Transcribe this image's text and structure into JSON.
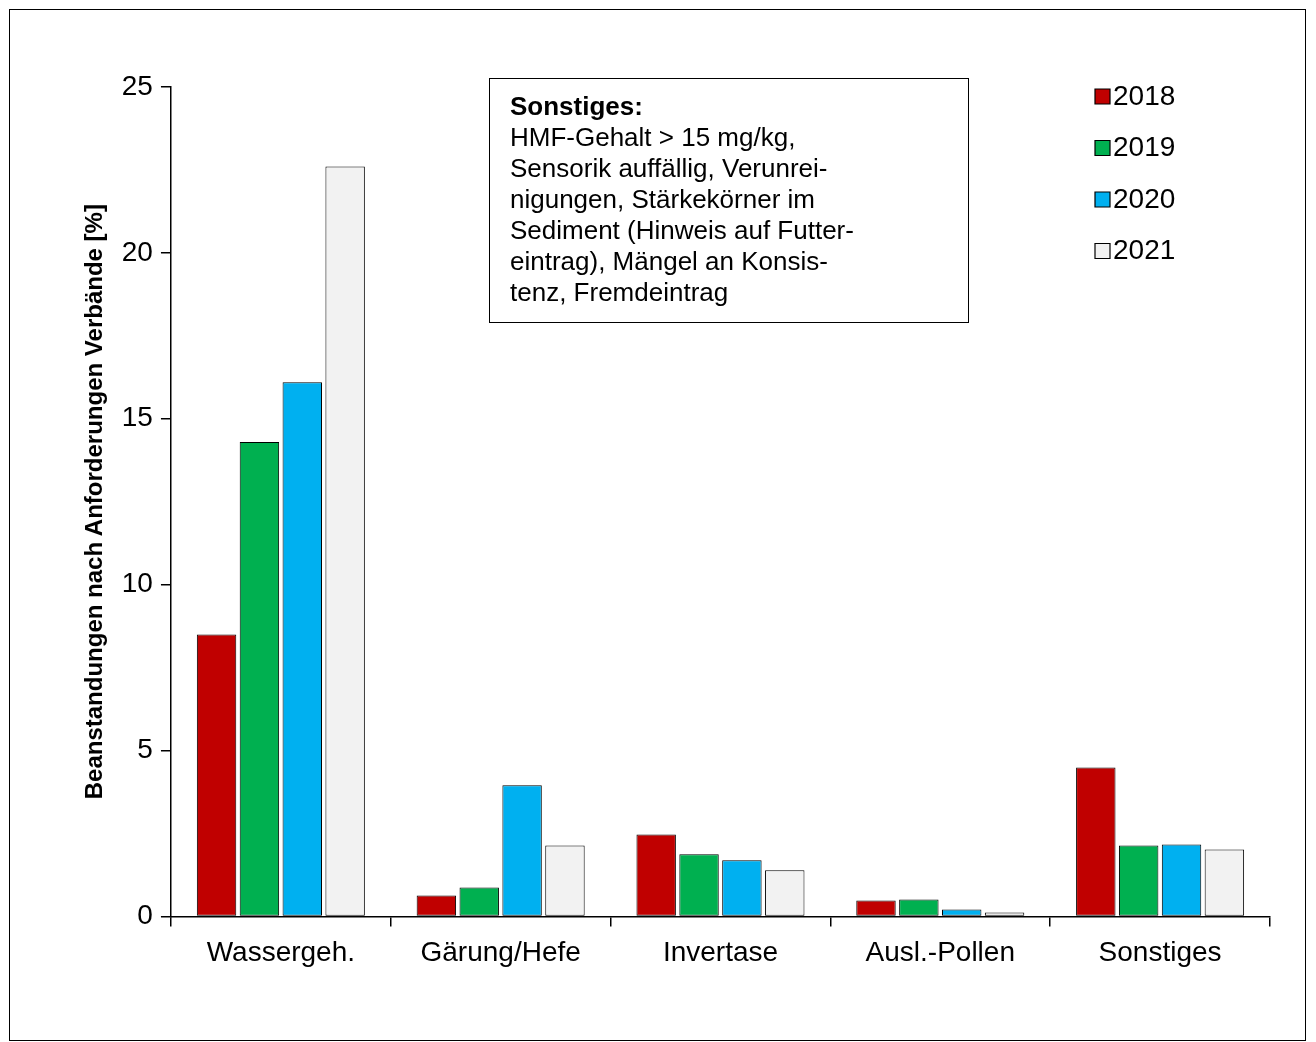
{
  "chart_data": {
    "type": "bar",
    "ylabel": "Beanstandungen nach Anforderungen Verbände [%]",
    "categories": [
      "Wassergeh.",
      "Gärung/Hefe",
      "Invertase",
      "Ausl.-Pollen",
      "Sonstiges"
    ],
    "series": [
      {
        "name": "2018",
        "color": "#c00000",
        "values": [
          8.5,
          0.63,
          2.47,
          0.48,
          4.49
        ]
      },
      {
        "name": "2019",
        "color": "#00b050",
        "values": [
          14.3,
          0.87,
          1.87,
          0.51,
          2.14
        ]
      },
      {
        "name": "2020",
        "color": "#00b0f0",
        "values": [
          16.1,
          3.95,
          1.69,
          0.21,
          2.17
        ]
      },
      {
        "name": "2021",
        "color": "#f2f2f2",
        "values": [
          22.6,
          2.14,
          1.39,
          0.12,
          2.02
        ]
      }
    ],
    "ylim": [
      0,
      25
    ],
    "yticks": [
      0,
      5,
      10,
      15,
      20,
      25
    ],
    "grid": false,
    "legend": "top right",
    "annotations": [
      "Sonstiges:",
      "HMF-Gehalt > 15 mg/kg,\nSensorik auffällig, Verunrei-\nnigungen, Stärkekörner im\nSediment (Hinweis auf Futter-\neintrag), Mängel an Konsis-\ntenz, Fremdeintrag"
    ]
  }
}
